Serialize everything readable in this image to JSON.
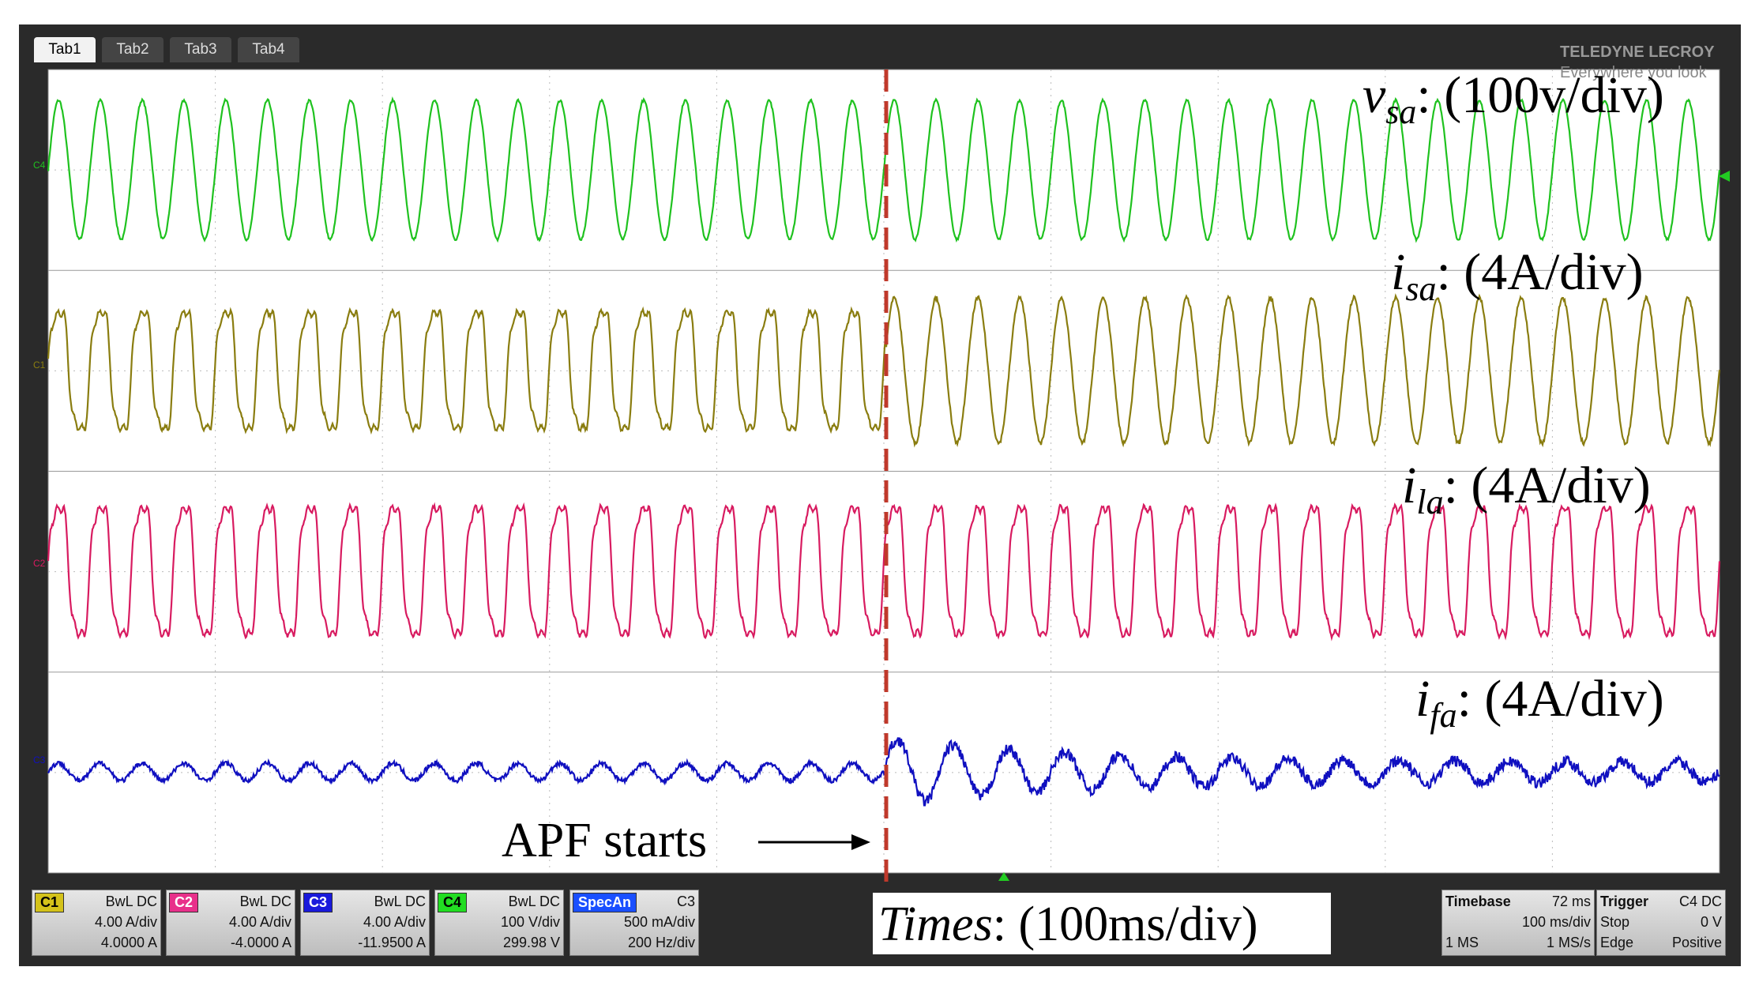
{
  "tabs": [
    "Tab1",
    "Tab2",
    "Tab3",
    "Tab4"
  ],
  "brand": {
    "name": "TELEDYNE LECROY",
    "slogan": "Everywhere you look"
  },
  "trace_markers": [
    "C4",
    "C1",
    "C2",
    "C3"
  ],
  "labels": [
    {
      "symbol": "v",
      "subscript": "sa",
      "text": ": (100v/div)"
    },
    {
      "symbol": "i",
      "subscript": "sa",
      "text": ": (4A/div)"
    },
    {
      "symbol": "i",
      "subscript": "la",
      "text": ": (4A/div)"
    },
    {
      "symbol": "i",
      "subscript": "fa",
      "text": ": (4A/div)"
    }
  ],
  "annotation": "APF starts",
  "time_label": {
    "symbol": "Times",
    "text": ": (100ms/div)"
  },
  "channels": [
    {
      "name": "C1",
      "setting": "BwL DC",
      "scale": "4.00 A/div",
      "offset": "4.0000 A"
    },
    {
      "name": "C2",
      "setting": "BwL DC",
      "scale": "4.00 A/div",
      "offset": "-4.0000 A"
    },
    {
      "name": "C3",
      "setting": "BwL DC",
      "scale": "4.00 A/div",
      "offset": "-11.9500 A"
    },
    {
      "name": "C4",
      "setting": "BwL DC",
      "scale": "100 V/div",
      "offset": "299.98 V"
    }
  ],
  "math": {
    "name": "SpecAn",
    "source": "C3",
    "scale": "500 mA/div",
    "center": "200 Hz/div"
  },
  "timebase": {
    "title": "Timebase",
    "delay": "72 ms",
    "scale": "100 ms/div",
    "samples": "1 MS",
    "rate": "1 MS/s"
  },
  "trigger": {
    "title": "Trigger",
    "source": "C4 DC",
    "mode": "Stop",
    "level": "0 V",
    "type": "Edge",
    "slope": "Positive"
  }
}
